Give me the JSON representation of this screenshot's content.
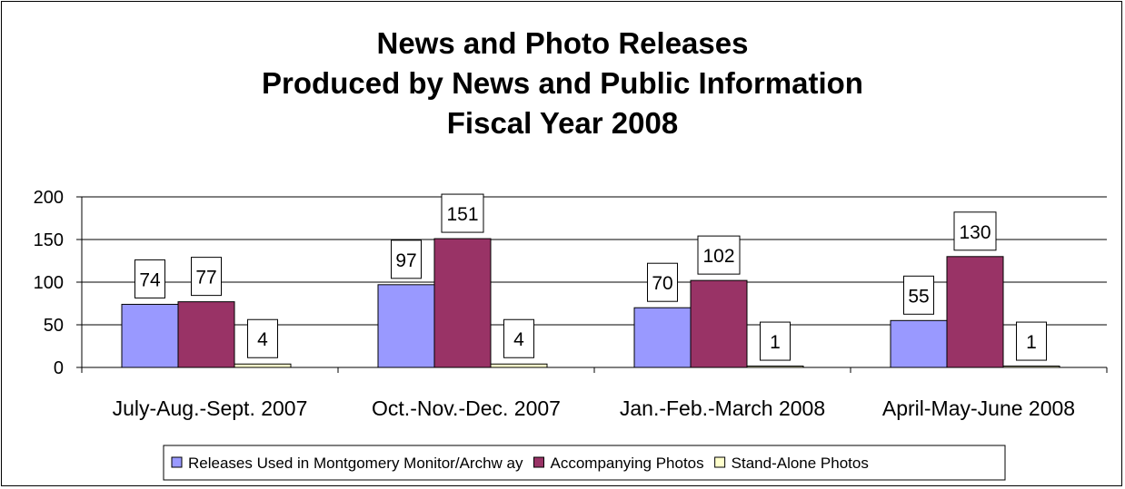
{
  "chart_data": {
    "type": "bar",
    "title_lines": [
      "News and Photo Releases",
      "Produced by News and Public Information",
      "Fiscal Year 2008"
    ],
    "categories": [
      "July-Aug.-Sept. 2007",
      "Oct.-Nov.-Dec. 2007",
      "Jan.-Feb.-March 2008",
      "April-May-June 2008"
    ],
    "series": [
      {
        "name": "Releases Used in Montgomery Monitor/Archw ay",
        "color": "#9999ff",
        "values": [
          74,
          97,
          70,
          55
        ]
      },
      {
        "name": "Accompanying Photos",
        "color": "#993366",
        "values": [
          77,
          151,
          102,
          130
        ]
      },
      {
        "name": "Stand-Alone Photos",
        "color": "#ffffcc",
        "values": [
          4,
          4,
          1,
          1
        ]
      }
    ],
    "ylim": [
      0,
      200
    ],
    "yticks": [
      0,
      50,
      100,
      150,
      200
    ],
    "grid": true,
    "data_labels": true,
    "legend_position": "bottom"
  }
}
